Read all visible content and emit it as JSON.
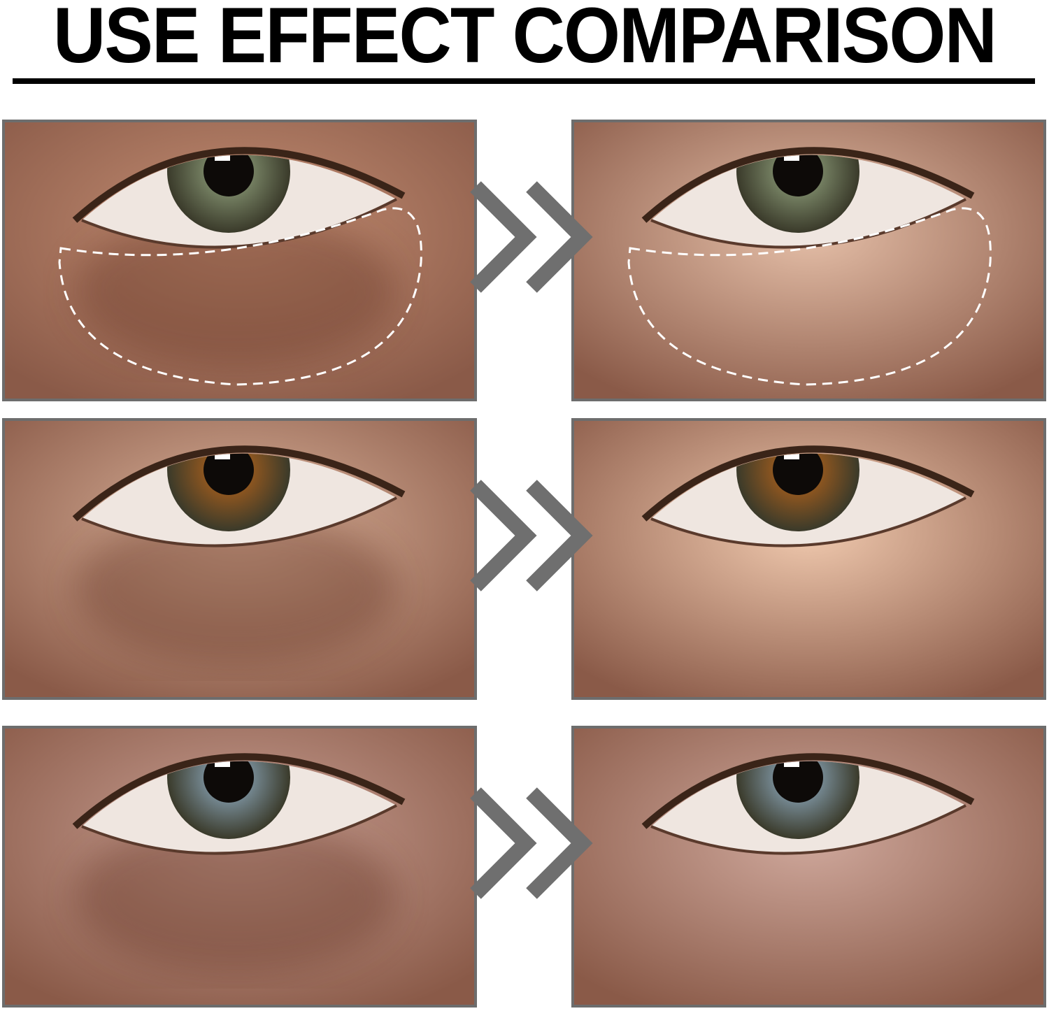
{
  "title": "USE EFFECT COMPARISON",
  "colors": {
    "border": "#6d6d6d",
    "arrow": "#6f6f6f",
    "title": "#000000"
  },
  "rows": [
    {
      "before": {
        "iris": "#7d8a6a",
        "skin": "#c58f74",
        "dark_circle": true,
        "outline": true
      },
      "after": {
        "iris": "#7d8a6a",
        "skin": "#e5bfa8",
        "dark_circle": false,
        "outline": true
      },
      "arrow_icon": "double-chevron-right-icon"
    },
    {
      "before": {
        "iris": "#9a5a1e",
        "skin": "#dcb49c",
        "dark_circle": true,
        "outline": false
      },
      "after": {
        "iris": "#9a5a1e",
        "skin": "#f0c9ae",
        "dark_circle": false,
        "outline": false
      },
      "arrow_icon": "double-chevron-right-icon"
    },
    {
      "before": {
        "iris": "#7d93a0",
        "skin": "#c9a094",
        "dark_circle": true,
        "outline": false
      },
      "after": {
        "iris": "#7d93a0",
        "skin": "#cfa89c",
        "dark_circle": false,
        "outline": false
      },
      "arrow_icon": "double-chevron-right-icon"
    }
  ]
}
